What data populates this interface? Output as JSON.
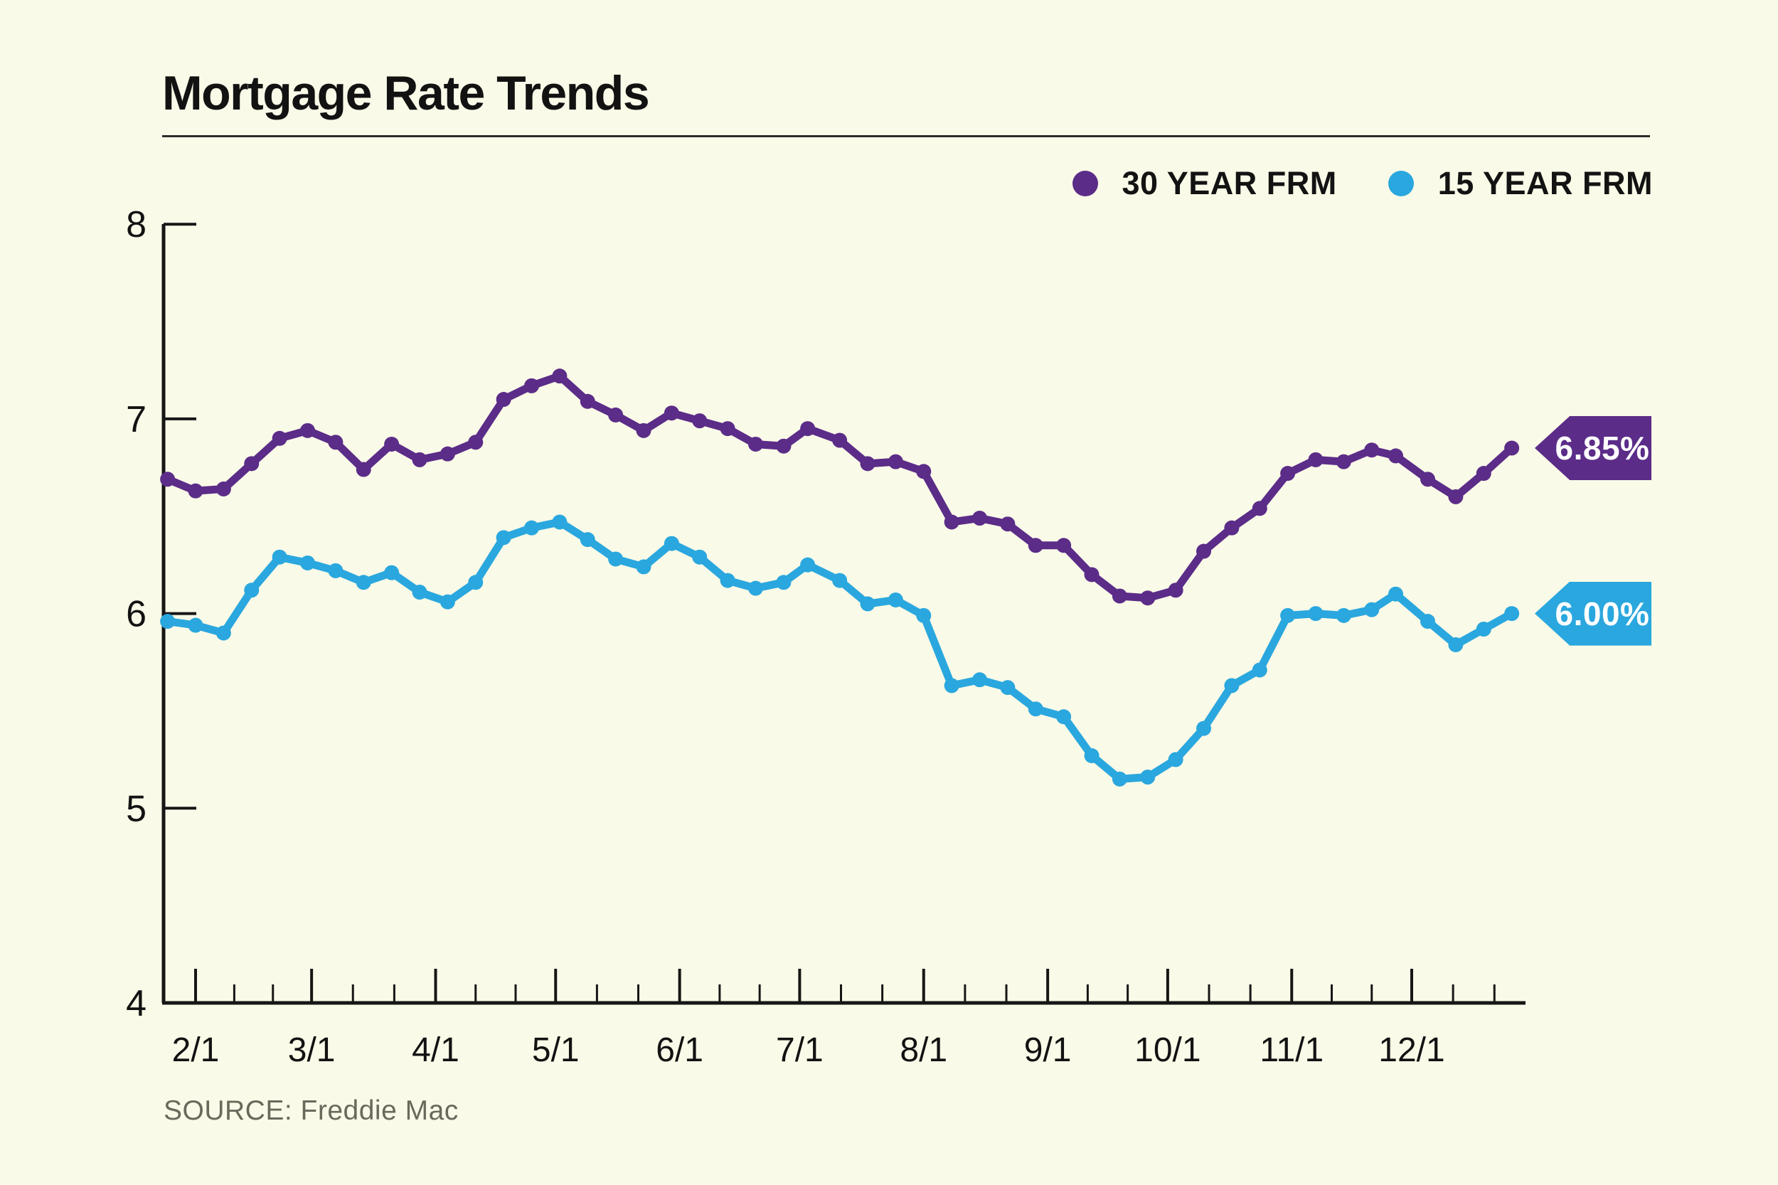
{
  "title": "Mortgage Rate Trends",
  "legend": {
    "items": [
      {
        "label": "30 YEAR FRM",
        "color": "#5b2c88"
      },
      {
        "label": "15 YEAR FRM",
        "color": "#2aa7de"
      }
    ]
  },
  "source": "SOURCE: Freddie Mac",
  "colors": {
    "background": "#fafae8",
    "axis": "#161616",
    "text": "#121212",
    "source_text": "#69695c",
    "series_30yr": "#5b2c88",
    "series_15yr": "#2aa7de"
  },
  "chart_data": {
    "type": "line",
    "title": "Mortgage Rate Trends",
    "xlabel": "",
    "ylabel": "",
    "ylim": [
      4,
      8
    ],
    "yticks": [
      4,
      5,
      6,
      7,
      8
    ],
    "grid": false,
    "legend_position": "top-right",
    "x_dates": [
      "1/25",
      "2/1",
      "2/8",
      "2/15",
      "2/22",
      "2/29",
      "3/7",
      "3/14",
      "3/21",
      "3/28",
      "4/4",
      "4/11",
      "4/18",
      "4/25",
      "5/2",
      "5/9",
      "5/16",
      "5/23",
      "5/30",
      "6/6",
      "6/13",
      "6/20",
      "6/27",
      "7/3",
      "7/11",
      "7/18",
      "7/25",
      "8/1",
      "8/8",
      "8/15",
      "8/22",
      "8/29",
      "9/5",
      "9/12",
      "9/19",
      "9/26",
      "10/3",
      "10/10",
      "10/17",
      "10/24",
      "10/31",
      "11/7",
      "11/14",
      "11/21",
      "11/27",
      "12/5",
      "12/12",
      "12/19",
      "12/26"
    ],
    "x_day_of_year": [
      25,
      32,
      39,
      46,
      53,
      60,
      67,
      74,
      81,
      88,
      95,
      102,
      109,
      116,
      123,
      130,
      137,
      144,
      151,
      158,
      165,
      172,
      179,
      185,
      193,
      200,
      207,
      214,
      221,
      228,
      235,
      242,
      249,
      256,
      263,
      270,
      277,
      284,
      291,
      298,
      305,
      312,
      319,
      326,
      332,
      340,
      347,
      354,
      361
    ],
    "x_month_ticks": [
      {
        "label": "2/1",
        "day": 32
      },
      {
        "label": "3/1",
        "day": 61
      },
      {
        "label": "4/1",
        "day": 92
      },
      {
        "label": "5/1",
        "day": 122
      },
      {
        "label": "6/1",
        "day": 153
      },
      {
        "label": "7/1",
        "day": 183
      },
      {
        "label": "8/1",
        "day": 214
      },
      {
        "label": "9/1",
        "day": 245
      },
      {
        "label": "10/1",
        "day": 275
      },
      {
        "label": "11/1",
        "day": 306
      },
      {
        "label": "12/1",
        "day": 336
      }
    ],
    "series": [
      {
        "name": "30 YEAR FRM",
        "color": "#5b2c88",
        "final_label": "6.85%",
        "values": [
          6.69,
          6.63,
          6.64,
          6.77,
          6.9,
          6.94,
          6.88,
          6.74,
          6.87,
          6.79,
          6.82,
          6.88,
          7.1,
          7.17,
          7.22,
          7.09,
          7.02,
          6.94,
          7.03,
          6.99,
          6.95,
          6.87,
          6.86,
          6.95,
          6.89,
          6.77,
          6.78,
          6.73,
          6.47,
          6.49,
          6.46,
          6.35,
          6.35,
          6.2,
          6.09,
          6.08,
          6.12,
          6.32,
          6.44,
          6.54,
          6.72,
          6.79,
          6.78,
          6.84,
          6.81,
          6.69,
          6.6,
          6.72,
          6.85
        ]
      },
      {
        "name": "15 YEAR FRM",
        "color": "#2aa7de",
        "final_label": "6.00%",
        "values": [
          5.96,
          5.94,
          5.9,
          6.12,
          6.29,
          6.26,
          6.22,
          6.16,
          6.21,
          6.11,
          6.06,
          6.16,
          6.39,
          6.44,
          6.47,
          6.38,
          6.28,
          6.24,
          6.36,
          6.29,
          6.17,
          6.13,
          6.16,
          6.25,
          6.17,
          6.05,
          6.07,
          5.99,
          5.63,
          5.66,
          5.62,
          5.51,
          5.47,
          5.27,
          5.15,
          5.16,
          5.25,
          5.41,
          5.63,
          5.71,
          5.99,
          6.0,
          5.99,
          6.02,
          6.1,
          5.96,
          5.84,
          5.92,
          6.0
        ]
      }
    ]
  }
}
